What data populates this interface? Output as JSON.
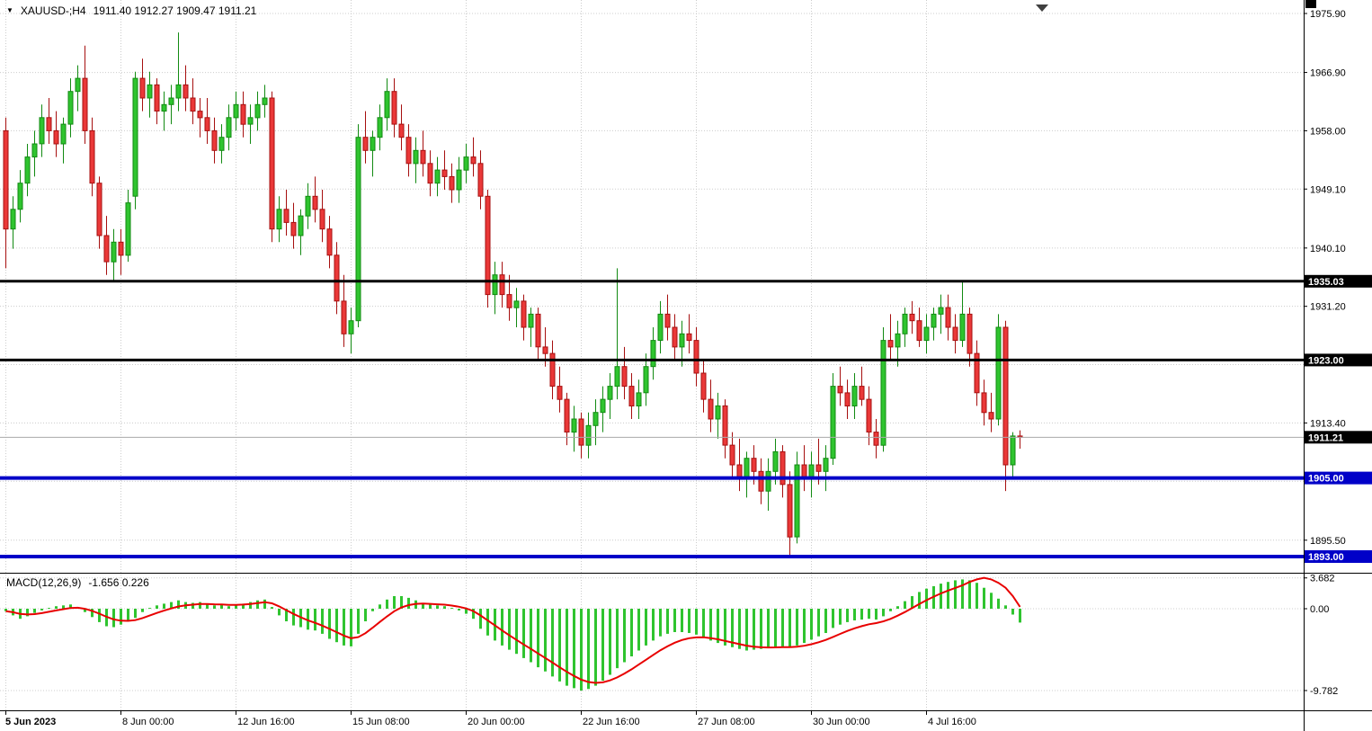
{
  "window": {
    "title_symbol": "XAUUSD-;H4",
    "title_ohlc": "1911.40 1912.27 1909.47 1911.21"
  },
  "icons": {
    "symbol_marker": "▼",
    "shift_marker": "▼"
  },
  "indicator": {
    "label": "MACD(12,26,9)",
    "values": "-1.656 0.226"
  },
  "colors": {
    "background": "#FFFFFF",
    "grid": "#CCCCCC",
    "bull": "#2FC42F",
    "bull_stroke": "#128A12",
    "bear": "#EA3838",
    "bear_stroke": "#A60F0F",
    "macd_hist": "#2FC42F",
    "macd_signal": "#E80000",
    "current_price_line": "#AAAAAA",
    "axis_text": "#000000",
    "tag_text": "#FFFFFF",
    "black_line": "#000000",
    "blue_line": "#0000C8"
  },
  "price_axis": {
    "visible_ticks": [
      "1975.90",
      "1966.90",
      "1958.00",
      "1949.10",
      "1940.10",
      "1931.20",
      "1913.40",
      "1895.50"
    ],
    "grid_values": [
      1975.9,
      1966.9,
      1958.0,
      1949.1,
      1940.1,
      1931.2,
      1922.3,
      1913.4,
      1904.5,
      1895.5
    ]
  },
  "macd_axis": {
    "ticks": [
      {
        "text": "3.682",
        "value": 3.682
      },
      {
        "text": "0.00",
        "value": 0
      },
      {
        "text": "-9.782",
        "value": -9.782
      }
    ]
  },
  "time_axis": {
    "labels": [
      {
        "text": "5 Jun 2023",
        "index": 0
      },
      {
        "text": "8 Jun 00:00",
        "index": 16
      },
      {
        "text": "12 Jun 16:00",
        "index": 32
      },
      {
        "text": "15 Jun 08:00",
        "index": 48
      },
      {
        "text": "20 Jun 00:00",
        "index": 64
      },
      {
        "text": "22 Jun 16:00",
        "index": 80
      },
      {
        "text": "27 Jun 08:00",
        "index": 96
      },
      {
        "text": "30 Jun 00:00",
        "index": 112
      },
      {
        "text": "4 Jul 16:00",
        "index": 128
      }
    ]
  },
  "lines": [
    {
      "label": "1935.03",
      "price": 1935.03,
      "color": "#000000",
      "width": 3
    },
    {
      "label": "1923.00",
      "price": 1923.0,
      "color": "#000000",
      "width": 3
    },
    {
      "label": "1905.00",
      "price": 1905.0,
      "color": "#0000C8",
      "width": 4
    },
    {
      "label": "1893.00",
      "price": 1893.0,
      "color": "#0000C8",
      "width": 4
    }
  ],
  "current_price": {
    "label": "1911.21",
    "value": 1911.21,
    "tag_bg": "#000000"
  },
  "chart_data": {
    "type": "candlestick",
    "symbol": "XAUUSD-",
    "timeframe": "H4",
    "title": "XAUUSD-;H4",
    "ylim": [
      1890.5,
      1978.0
    ],
    "x_tick_labels": [
      "5 Jun 2023",
      "8 Jun 00:00",
      "12 Jun 16:00",
      "15 Jun 08:00",
      "20 Jun 00:00",
      "22 Jun 16:00",
      "27 Jun 08:00",
      "30 Jun 00:00",
      "4 Jul 16:00"
    ],
    "levels": [
      1935.03,
      1923.0,
      1905.0,
      1893.0
    ],
    "last_price": 1911.21,
    "last_ohlc": [
      1911.4,
      1912.27,
      1909.47,
      1911.21
    ],
    "ohlc_order": [
      "open",
      "high",
      "low",
      "close"
    ],
    "candles": [
      [
        1958,
        1960,
        1937,
        1943
      ],
      [
        1943,
        1948,
        1940,
        1946
      ],
      [
        1946,
        1952,
        1944,
        1950
      ],
      [
        1950,
        1956,
        1948,
        1954
      ],
      [
        1954,
        1958,
        1951,
        1956
      ],
      [
        1956,
        1962,
        1954,
        1960
      ],
      [
        1960,
        1963,
        1956,
        1958
      ],
      [
        1958,
        1961,
        1954,
        1956
      ],
      [
        1956,
        1960,
        1953,
        1959
      ],
      [
        1959,
        1966,
        1957,
        1964
      ],
      [
        1964,
        1968,
        1961,
        1966
      ],
      [
        1966,
        1971,
        1956,
        1958
      ],
      [
        1958,
        1960,
        1948,
        1950
      ],
      [
        1950,
        1951,
        1940,
        1942
      ],
      [
        1942,
        1945,
        1936,
        1938
      ],
      [
        1938,
        1943,
        1935,
        1941
      ],
      [
        1941,
        1943,
        1936,
        1939
      ],
      [
        1939,
        1949,
        1938,
        1947
      ],
      [
        1948,
        1967,
        1946,
        1966
      ],
      [
        1966,
        1969,
        1961,
        1963
      ],
      [
        1963,
        1967,
        1960,
        1965
      ],
      [
        1965,
        1966,
        1959,
        1961
      ],
      [
        1961,
        1964,
        1958,
        1962
      ],
      [
        1962,
        1965,
        1959,
        1963
      ],
      [
        1963,
        1973,
        1961,
        1965
      ],
      [
        1965,
        1968,
        1961,
        1963
      ],
      [
        1963,
        1966,
        1959,
        1961
      ],
      [
        1961,
        1963,
        1957,
        1960
      ],
      [
        1960,
        1963,
        1956,
        1958
      ],
      [
        1958,
        1960,
        1953,
        1955
      ],
      [
        1955,
        1959,
        1953,
        1957
      ],
      [
        1957,
        1962,
        1955,
        1960
      ],
      [
        1960,
        1964,
        1958,
        1962
      ],
      [
        1962,
        1964,
        1957,
        1959
      ],
      [
        1959,
        1962,
        1956,
        1960
      ],
      [
        1960,
        1964,
        1958,
        1962
      ],
      [
        1962,
        1965,
        1960,
        1963
      ],
      [
        1963,
        1964,
        1941,
        1943
      ],
      [
        1943,
        1948,
        1941,
        1946
      ],
      [
        1946,
        1949,
        1942,
        1944
      ],
      [
        1944,
        1947,
        1940,
        1942
      ],
      [
        1942,
        1946,
        1939,
        1945
      ],
      [
        1945,
        1950,
        1943,
        1948
      ],
      [
        1948,
        1951,
        1944,
        1946
      ],
      [
        1946,
        1949,
        1941,
        1943
      ],
      [
        1943,
        1945,
        1937,
        1939
      ],
      [
        1939,
        1941,
        1930,
        1932
      ],
      [
        1932,
        1936,
        1925,
        1927
      ],
      [
        1927,
        1931,
        1924,
        1929
      ],
      [
        1929,
        1959,
        1928,
        1957
      ],
      [
        1957,
        1961,
        1953,
        1955
      ],
      [
        1955,
        1958,
        1951,
        1957
      ],
      [
        1957,
        1962,
        1955,
        1960
      ],
      [
        1960,
        1966,
        1958,
        1964
      ],
      [
        1964,
        1966,
        1957,
        1959
      ],
      [
        1959,
        1962,
        1955,
        1957
      ],
      [
        1957,
        1959,
        1951,
        1953
      ],
      [
        1953,
        1957,
        1950,
        1955
      ],
      [
        1955,
        1958,
        1951,
        1953
      ],
      [
        1953,
        1955,
        1948,
        1950
      ],
      [
        1950,
        1954,
        1948,
        1952
      ],
      [
        1952,
        1955,
        1949,
        1951
      ],
      [
        1951,
        1953,
        1947,
        1949
      ],
      [
        1949,
        1954,
        1947,
        1952
      ],
      [
        1952,
        1956,
        1950,
        1954
      ],
      [
        1954,
        1957,
        1951,
        1953
      ],
      [
        1953,
        1955,
        1946,
        1948
      ],
      [
        1948,
        1949,
        1931,
        1933
      ],
      [
        1933,
        1938,
        1930,
        1936
      ],
      [
        1936,
        1938,
        1931,
        1933
      ],
      [
        1933,
        1936,
        1929,
        1931
      ],
      [
        1931,
        1934,
        1928,
        1932
      ],
      [
        1932,
        1933,
        1926,
        1928
      ],
      [
        1928,
        1931,
        1925,
        1930
      ],
      [
        1930,
        1931,
        1923,
        1925
      ],
      [
        1925,
        1928,
        1922,
        1924
      ],
      [
        1924,
        1926,
        1917,
        1919
      ],
      [
        1919,
        1922,
        1915,
        1917
      ],
      [
        1917,
        1918,
        1910,
        1912
      ],
      [
        1912,
        1916,
        1909,
        1914
      ],
      [
        1914,
        1915,
        1908,
        1910
      ],
      [
        1910,
        1915,
        1908,
        1913
      ],
      [
        1913,
        1917,
        1910,
        1915
      ],
      [
        1915,
        1919,
        1912,
        1917
      ],
      [
        1917,
        1921,
        1914,
        1919
      ],
      [
        1919,
        1937,
        1917,
        1922
      ],
      [
        1922,
        1925,
        1917,
        1919
      ],
      [
        1919,
        1921,
        1914,
        1916
      ],
      [
        1916,
        1920,
        1914,
        1918
      ],
      [
        1918,
        1924,
        1916,
        1922
      ],
      [
        1922,
        1928,
        1920,
        1926
      ],
      [
        1926,
        1932,
        1924,
        1930
      ],
      [
        1930,
        1933,
        1926,
        1928
      ],
      [
        1928,
        1930,
        1923,
        1925
      ],
      [
        1925,
        1929,
        1922,
        1927
      ],
      [
        1927,
        1930,
        1924,
        1926
      ],
      [
        1926,
        1928,
        1919,
        1921
      ],
      [
        1921,
        1923,
        1915,
        1917
      ],
      [
        1917,
        1920,
        1912,
        1914
      ],
      [
        1914,
        1918,
        1911,
        1916
      ],
      [
        1916,
        1917,
        1908,
        1910
      ],
      [
        1910,
        1912,
        1905,
        1907
      ],
      [
        1907,
        1911,
        1903,
        1905
      ],
      [
        1905,
        1909,
        1902,
        1908
      ],
      [
        1908,
        1910,
        1904,
        1906
      ],
      [
        1906,
        1908,
        1901,
        1903
      ],
      [
        1903,
        1908,
        1900,
        1906
      ],
      [
        1906,
        1911,
        1904,
        1909
      ],
      [
        1909,
        1910,
        1902,
        1904
      ],
      [
        1904,
        1906,
        1893,
        1896
      ],
      [
        1896,
        1909,
        1895,
        1907
      ],
      [
        1907,
        1910,
        1903,
        1905
      ],
      [
        1905,
        1909,
        1902,
        1907
      ],
      [
        1907,
        1911,
        1904,
        1906
      ],
      [
        1906,
        1910,
        1903,
        1908
      ],
      [
        1908,
        1921,
        1907,
        1919
      ],
      [
        1919,
        1922,
        1916,
        1918
      ],
      [
        1918,
        1920,
        1914,
        1916
      ],
      [
        1916,
        1921,
        1914,
        1919
      ],
      [
        1919,
        1922,
        1916,
        1917
      ],
      [
        1917,
        1919,
        1910,
        1912
      ],
      [
        1912,
        1914,
        1908,
        1910
      ],
      [
        1910,
        1928,
        1909,
        1926
      ],
      [
        1926,
        1930,
        1923,
        1925
      ],
      [
        1925,
        1929,
        1922,
        1927
      ],
      [
        1927,
        1931,
        1925,
        1930
      ],
      [
        1930,
        1932,
        1927,
        1929
      ],
      [
        1929,
        1931,
        1925,
        1926
      ],
      [
        1926,
        1930,
        1924,
        1928
      ],
      [
        1928,
        1931,
        1926,
        1930
      ],
      [
        1930,
        1933,
        1927,
        1931
      ],
      [
        1931,
        1933,
        1926,
        1928
      ],
      [
        1928,
        1930,
        1924,
        1926
      ],
      [
        1926,
        1935,
        1925,
        1930
      ],
      [
        1930,
        1931,
        1922,
        1924
      ],
      [
        1924,
        1926,
        1916,
        1918
      ],
      [
        1918,
        1920,
        1913,
        1915
      ],
      [
        1915,
        1918,
        1912,
        1914
      ],
      [
        1914,
        1930,
        1913,
        1928
      ],
      [
        1928,
        1929,
        1903,
        1907
      ],
      [
        1907,
        1912,
        1905,
        1911.4
      ],
      [
        1911.4,
        1912.27,
        1909.47,
        1911.21
      ]
    ],
    "macd": {
      "label": "MACD(12,26,9)",
      "main_value": -1.656,
      "signal_value": 0.226,
      "ylim": [
        -9.782,
        3.682
      ],
      "histogram": [
        -0.3,
        -0.8,
        -1.2,
        -0.9,
        -0.5,
        -0.2,
        0.1,
        0.3,
        0.4,
        0.5,
        0.2,
        -0.4,
        -1.0,
        -1.6,
        -2.1,
        -2.2,
        -1.9,
        -1.5,
        -1.1,
        -0.4,
        0.1,
        0.4,
        0.6,
        0.8,
        1.0,
        0.8,
        0.7,
        0.8,
        0.6,
        0.4,
        0.5,
        0.3,
        0.4,
        0.6,
        0.8,
        1.0,
        1.1,
        0.2,
        -0.8,
        -1.5,
        -2.0,
        -2.2,
        -2.5,
        -2.6,
        -3.0,
        -3.6,
        -4.0,
        -4.4,
        -4.5,
        -3.0,
        -1.5,
        -0.3,
        0.5,
        1.1,
        1.5,
        1.5,
        1.3,
        1.0,
        0.7,
        0.5,
        0.4,
        0.3,
        0.1,
        -0.2,
        -0.6,
        -1.2,
        -2.4,
        -3.2,
        -3.8,
        -4.4,
        -4.9,
        -5.4,
        -5.9,
        -6.4,
        -7.0,
        -7.5,
        -8.1,
        -8.7,
        -9.2,
        -9.5,
        -9.78,
        -9.6,
        -9.2,
        -8.6,
        -7.9,
        -7.1,
        -6.4,
        -5.7,
        -5.0,
        -4.4,
        -3.8,
        -3.3,
        -3.0,
        -2.8,
        -2.8,
        -2.9,
        -3.1,
        -3.4,
        -3.8,
        -4.1,
        -4.4,
        -4.6,
        -4.8,
        -5.0,
        -4.9,
        -4.8,
        -4.7,
        -4.6,
        -4.5,
        -4.6,
        -4.4,
        -4.1,
        -3.7,
        -3.3,
        -2.9,
        -2.3,
        -1.9,
        -1.6,
        -1.4,
        -1.3,
        -1.2,
        -1.3,
        -0.9,
        -0.3,
        0.3,
        0.9,
        1.5,
        2.0,
        2.4,
        2.7,
        3.0,
        3.2,
        3.4,
        3.5,
        3.4,
        3.1,
        2.5,
        1.9,
        1.2,
        0.4,
        -0.7,
        -1.656
      ],
      "signal": [
        -0.3,
        -0.42,
        -0.62,
        -0.69,
        -0.64,
        -0.53,
        -0.37,
        -0.2,
        -0.05,
        0.09,
        0.12,
        -0.01,
        -0.26,
        -0.59,
        -0.97,
        -1.28,
        -1.43,
        -1.45,
        -1.36,
        -1.12,
        -0.82,
        -0.51,
        -0.23,
        0.03,
        0.27,
        0.4,
        0.48,
        0.56,
        0.57,
        0.53,
        0.52,
        0.46,
        0.45,
        0.49,
        0.57,
        0.67,
        0.78,
        0.64,
        0.28,
        -0.17,
        -0.62,
        -1.02,
        -1.39,
        -1.69,
        -2.02,
        -2.41,
        -2.81,
        -3.21,
        -3.53,
        -3.4,
        -2.92,
        -2.27,
        -1.58,
        -0.91,
        -0.3,
        0.15,
        0.43,
        0.58,
        0.61,
        0.58,
        0.53,
        0.48,
        0.38,
        0.24,
        0.03,
        -0.28,
        -0.81,
        -1.41,
        -2.0,
        -2.6,
        -3.18,
        -3.73,
        -4.28,
        -4.81,
        -5.35,
        -5.89,
        -6.44,
        -7.01,
        -7.55,
        -8.04,
        -8.48,
        -8.76,
        -8.87,
        -8.8,
        -8.57,
        -8.21,
        -7.75,
        -7.24,
        -6.68,
        -6.11,
        -5.53,
        -4.97,
        -4.48,
        -4.06,
        -3.74,
        -3.53,
        -3.43,
        -3.42,
        -3.52,
        -3.66,
        -3.85,
        -4.04,
        -4.23,
        -4.42,
        -4.54,
        -4.61,
        -4.63,
        -4.62,
        -4.59,
        -4.59,
        -4.54,
        -4.43,
        -4.25,
        -4.01,
        -3.73,
        -3.37,
        -3.01,
        -2.65,
        -2.34,
        -2.08,
        -1.86,
        -1.72,
        -1.52,
        -1.21,
        -0.83,
        -0.4,
        0.08,
        0.56,
        1.02,
        1.44,
        1.83,
        2.17,
        2.48,
        2.8,
        3.2,
        3.5,
        3.682,
        3.5,
        3.1,
        2.5,
        1.5,
        0.226
      ]
    }
  }
}
